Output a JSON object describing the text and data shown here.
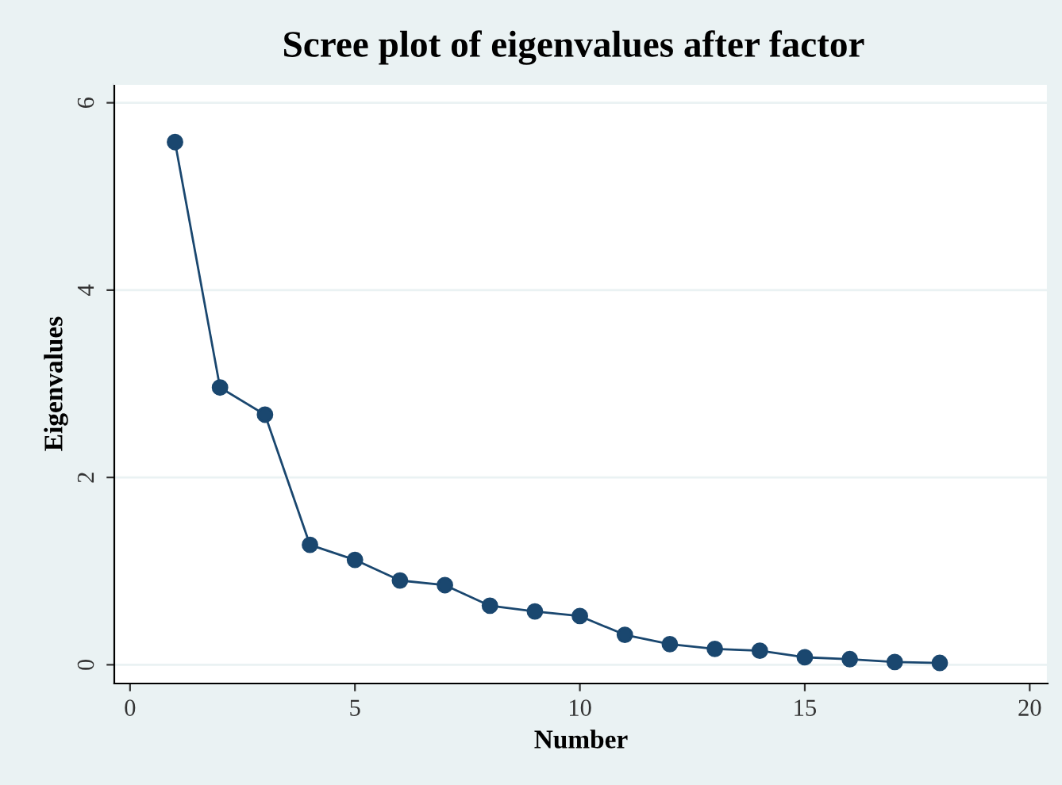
{
  "chart_data": {
    "type": "line",
    "title": "Scree plot of eigenvalues after factor",
    "xlabel": "Number",
    "ylabel": "Eigenvalues",
    "x": [
      1,
      2,
      3,
      4,
      5,
      6,
      7,
      8,
      9,
      10,
      11,
      12,
      13,
      14,
      15,
      16,
      17,
      18
    ],
    "series": [
      {
        "color": "#1a476f",
        "values": [
          5.58,
          2.96,
          2.67,
          1.28,
          1.12,
          0.9,
          0.85,
          0.63,
          0.57,
          0.52,
          0.32,
          0.22,
          0.17,
          0.15,
          0.08,
          0.06,
          0.03,
          0.02
        ]
      }
    ],
    "xlim": [
      -0.35,
      20.4
    ],
    "ylim": [
      -0.2,
      6.2
    ],
    "xticks": [
      0,
      5,
      10,
      15,
      20
    ],
    "yticks": [
      0,
      2,
      4,
      6
    ],
    "grid": "y",
    "marker": "circle",
    "line_style": "solid",
    "legend": false
  }
}
